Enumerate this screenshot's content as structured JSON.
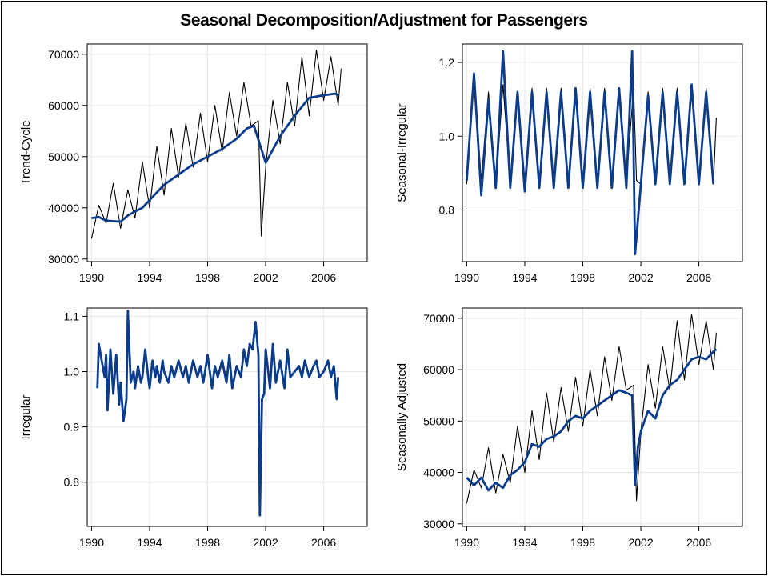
{
  "page": {
    "title": "Seasonal Decomposition/Adjustment  for Passengers"
  },
  "colors": {
    "raw": "#000000",
    "component": "#0b3c8a",
    "grid": "#e8e8e8"
  },
  "chart_data": [
    {
      "type": "line",
      "ylabel": "Trend-Cycle",
      "xlim": [
        1989.7,
        2009.0
      ],
      "ylim": [
        29500,
        72000
      ],
      "xticks": [
        1990,
        1994,
        1998,
        2002,
        2006
      ],
      "yticks": [
        30000,
        40000,
        50000,
        60000,
        70000
      ],
      "ytick_labels": [
        "30000",
        "40000",
        "50000",
        "60000",
        "70000"
      ],
      "grid": true,
      "series": [
        {
          "role": "raw",
          "x": [
            1990.0,
            1990.5,
            1991.0,
            1991.5,
            1992.0,
            1992.5,
            1993.0,
            1993.5,
            1994.0,
            1994.5,
            1995.0,
            1995.5,
            1996.0,
            1996.5,
            1997.0,
            1997.5,
            1998.0,
            1998.5,
            1999.0,
            1999.5,
            2000.0,
            2000.5,
            2001.0,
            2001.5,
            2001.7,
            2002.0,
            2002.5,
            2003.0,
            2003.5,
            2004.0,
            2004.5,
            2005.0,
            2005.5,
            2006.0,
            2006.5,
            2007.0,
            2007.2
          ],
          "y": [
            34000,
            40500,
            37000,
            44800,
            36000,
            43500,
            38000,
            49000,
            40000,
            52000,
            42500,
            55500,
            46000,
            56500,
            48000,
            58500,
            49000,
            60000,
            51000,
            62500,
            54000,
            64500,
            56000,
            57000,
            34500,
            48000,
            61000,
            52500,
            64500,
            56000,
            69500,
            58000,
            70800,
            61000,
            69500,
            60000,
            67200
          ]
        },
        {
          "role": "component",
          "x": [
            1990.0,
            1990.5,
            1991.0,
            1992.0,
            1992.5,
            1993.0,
            1993.5,
            1994.0,
            1995.0,
            1996.0,
            1997.0,
            1998.0,
            1999.0,
            2000.0,
            2000.7,
            2001.2,
            2002.0,
            2003.0,
            2004.0,
            2005.0,
            2006.0,
            2006.8,
            2007.0
          ],
          "y": [
            38000,
            38200,
            37500,
            37300,
            38500,
            39300,
            40000,
            41500,
            44500,
            46500,
            48500,
            50000,
            51500,
            53500,
            55500,
            56000,
            48800,
            54000,
            58000,
            61500,
            62000,
            62300,
            62000
          ]
        }
      ]
    },
    {
      "type": "line",
      "ylabel": "Seasonal-Irregular",
      "xlim": [
        1989.7,
        2009.0
      ],
      "ylim": [
        0.66,
        1.25
      ],
      "xticks": [
        1990,
        1994,
        1998,
        2002,
        2006
      ],
      "yticks": [
        0.8,
        1.0,
        1.2
      ],
      "ytick_labels": [
        "0.8",
        "1.0",
        "1.2"
      ],
      "grid": true,
      "series": [
        {
          "role": "raw",
          "x": [
            1990.0,
            1990.5,
            1991.0,
            1991.5,
            1992.0,
            1992.5,
            1993.0,
            1993.5,
            1994.0,
            1994.5,
            1995.0,
            1995.5,
            1996.0,
            1996.5,
            1997.0,
            1997.5,
            1998.0,
            1998.5,
            1999.0,
            1999.5,
            2000.0,
            2000.5,
            2001.0,
            2001.5,
            2001.7,
            2002.0,
            2002.5,
            2003.0,
            2003.5,
            2004.0,
            2004.5,
            2005.0,
            2005.5,
            2006.0,
            2006.5,
            2007.0,
            2007.2
          ],
          "y": [
            0.87,
            1.17,
            0.88,
            1.12,
            0.86,
            1.14,
            0.87,
            1.12,
            0.88,
            1.13,
            0.87,
            1.13,
            0.87,
            1.13,
            0.87,
            1.13,
            0.87,
            1.13,
            0.87,
            1.13,
            0.87,
            1.13,
            0.88,
            1.13,
            0.88,
            0.87,
            1.12,
            0.88,
            1.13,
            0.87,
            1.13,
            0.87,
            1.14,
            0.87,
            1.13,
            0.87,
            1.05
          ]
        },
        {
          "role": "component",
          "x": [
            1990.0,
            1990.5,
            1991.0,
            1991.5,
            1992.0,
            1992.5,
            1993.0,
            1993.5,
            1994.0,
            1994.5,
            1995.0,
            1995.5,
            1996.0,
            1996.5,
            1997.0,
            1997.5,
            1998.0,
            1998.5,
            1999.0,
            1999.5,
            2000.0,
            2000.5,
            2001.0,
            2001.4,
            2001.6,
            2002.0,
            2002.5,
            2003.0,
            2003.5,
            2004.0,
            2004.5,
            2005.0,
            2005.5,
            2006.0,
            2006.5,
            2007.0
          ],
          "y": [
            0.88,
            1.17,
            0.84,
            1.1,
            0.86,
            1.23,
            0.86,
            1.12,
            0.85,
            1.12,
            0.86,
            1.12,
            0.86,
            1.12,
            0.86,
            1.13,
            0.86,
            1.12,
            0.86,
            1.12,
            0.86,
            1.13,
            0.86,
            1.23,
            0.68,
            0.87,
            1.11,
            0.87,
            1.12,
            0.87,
            1.12,
            0.87,
            1.14,
            0.87,
            1.12,
            0.87
          ]
        }
      ]
    },
    {
      "type": "line",
      "ylabel": "Irregular",
      "xlim": [
        1989.7,
        2009.0
      ],
      "ylim": [
        0.72,
        1.115
      ],
      "xticks": [
        1990,
        1994,
        1998,
        2002,
        2006
      ],
      "yticks": [
        0.8,
        0.9,
        1.0,
        1.1
      ],
      "ytick_labels": [
        "0.8",
        "0.9",
        "1.0",
        "1.1"
      ],
      "grid": true,
      "series": [
        {
          "role": "component",
          "x": [
            1990.4,
            1990.5,
            1990.7,
            1990.9,
            1991.0,
            1991.1,
            1991.3,
            1991.5,
            1991.7,
            1991.9,
            1992.0,
            1992.2,
            1992.4,
            1992.5,
            1992.7,
            1992.9,
            1993.0,
            1993.2,
            1993.4,
            1993.5,
            1993.7,
            1993.9,
            1994.0,
            1994.2,
            1994.4,
            1994.5,
            1994.7,
            1994.9,
            1995.0,
            1995.3,
            1995.5,
            1995.7,
            1996.0,
            1996.3,
            1996.5,
            1996.7,
            1997.0,
            1997.3,
            1997.5,
            1997.7,
            1998.0,
            1998.3,
            1998.5,
            1998.7,
            1999.0,
            1999.3,
            1999.5,
            1999.7,
            2000.0,
            2000.3,
            2000.5,
            2000.7,
            2000.9,
            2001.1,
            2001.3,
            2001.5,
            2001.6,
            2001.75,
            2001.9,
            2002.0,
            2002.3,
            2002.5,
            2002.7,
            2003.0,
            2003.3,
            2003.5,
            2003.7,
            2004.0,
            2004.3,
            2004.5,
            2004.7,
            2005.0,
            2005.3,
            2005.5,
            2005.7,
            2006.0,
            2006.3,
            2006.5,
            2006.7,
            2006.9,
            2007.0
          ],
          "y": [
            0.97,
            1.05,
            1.02,
            0.99,
            1.03,
            0.93,
            1.04,
            0.96,
            1.03,
            0.94,
            0.98,
            0.91,
            0.95,
            1.11,
            0.98,
            1.0,
            0.97,
            1.01,
            0.98,
            0.99,
            1.04,
            0.99,
            0.97,
            1.02,
            0.99,
            1.01,
            0.98,
            1.02,
            1.0,
            0.98,
            1.01,
            0.99,
            1.02,
            0.99,
            1.01,
            0.98,
            1.02,
            0.99,
            1.01,
            0.98,
            1.03,
            0.97,
            1.01,
            0.99,
            1.02,
            0.98,
            1.03,
            0.97,
            1.01,
            0.99,
            1.04,
            1.01,
            1.05,
            1.04,
            1.09,
            1.03,
            0.74,
            0.95,
            0.96,
            1.04,
            0.97,
            1.05,
            0.98,
            1.02,
            0.97,
            1.04,
            0.99,
            1.0,
            1.01,
            0.99,
            1.02,
            0.99,
            1.01,
            1.02,
            0.99,
            1.0,
            1.02,
            0.99,
            1.01,
            0.95,
            0.99
          ]
        }
      ]
    },
    {
      "type": "line",
      "ylabel": "Seasonally Adjusted",
      "xlim": [
        1989.7,
        2009.0
      ],
      "ylim": [
        29500,
        72000
      ],
      "xticks": [
        1990,
        1994,
        1998,
        2002,
        2006
      ],
      "yticks": [
        30000,
        40000,
        50000,
        60000,
        70000
      ],
      "ytick_labels": [
        "30000",
        "40000",
        "50000",
        "60000",
        "70000"
      ],
      "grid": true,
      "series": [
        {
          "role": "raw",
          "x": [
            1990.0,
            1990.5,
            1991.0,
            1991.5,
            1992.0,
            1992.5,
            1993.0,
            1993.5,
            1994.0,
            1994.5,
            1995.0,
            1995.5,
            1996.0,
            1996.5,
            1997.0,
            1997.5,
            1998.0,
            1998.5,
            1999.0,
            1999.5,
            2000.0,
            2000.5,
            2001.0,
            2001.5,
            2001.7,
            2002.0,
            2002.5,
            2003.0,
            2003.5,
            2004.0,
            2004.5,
            2005.0,
            2005.5,
            2006.0,
            2006.5,
            2007.0,
            2007.2
          ],
          "y": [
            34000,
            40500,
            37000,
            44800,
            36000,
            43500,
            38000,
            49000,
            40000,
            52000,
            42500,
            55500,
            46000,
            56500,
            48000,
            58500,
            49000,
            60000,
            51000,
            62500,
            54000,
            64500,
            56000,
            57000,
            34500,
            48000,
            61000,
            52500,
            64500,
            56000,
            69500,
            58000,
            70800,
            61000,
            69500,
            60000,
            67200
          ]
        },
        {
          "role": "component",
          "x": [
            1990.0,
            1990.5,
            1991.0,
            1991.5,
            1992.0,
            1992.5,
            1993.0,
            1993.5,
            1994.0,
            1994.5,
            1995.0,
            1995.5,
            1996.0,
            1996.5,
            1997.0,
            1997.5,
            1998.0,
            1998.5,
            1999.0,
            1999.5,
            2000.0,
            2000.5,
            2001.0,
            2001.4,
            2001.6,
            2001.8,
            2002.0,
            2002.5,
            2003.0,
            2003.5,
            2004.0,
            2004.5,
            2005.0,
            2005.5,
            2006.0,
            2006.5,
            2007.0,
            2007.2
          ],
          "y": [
            39000,
            37500,
            39000,
            36500,
            38000,
            37000,
            39500,
            40500,
            42000,
            45500,
            45000,
            46500,
            47000,
            48000,
            50000,
            51000,
            50500,
            52000,
            53000,
            54000,
            55000,
            56000,
            55500,
            55000,
            37500,
            45000,
            48000,
            52000,
            50500,
            55000,
            57000,
            58000,
            60000,
            62000,
            62500,
            62000,
            63500,
            64000
          ]
        }
      ]
    }
  ]
}
